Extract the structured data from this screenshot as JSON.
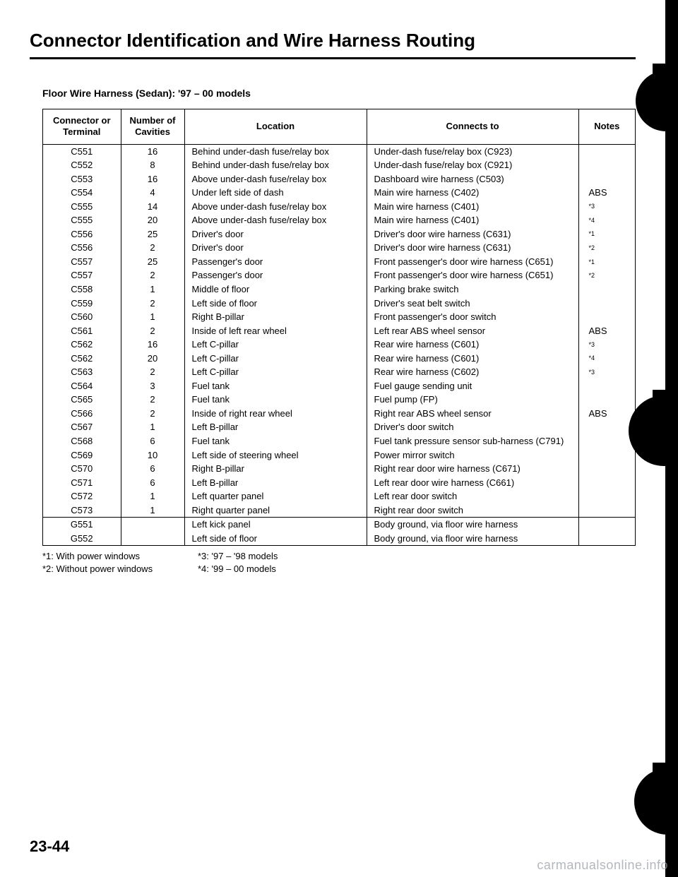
{
  "title": "Connector Identification and Wire Harness Routing",
  "subtitle": "Floor Wire Harness (Sedan): '97 – 00 models",
  "headers": {
    "connector": "Connector or\nTerminal",
    "cavities": "Number of\nCavities",
    "location": "Location",
    "connects": "Connects to",
    "notes": "Notes"
  },
  "rows": [
    {
      "c": "C551",
      "n": "16",
      "loc": "Behind under-dash fuse/relay box",
      "to": "Under-dash fuse/relay box (C923)",
      "note": ""
    },
    {
      "c": "C552",
      "n": "8",
      "loc": "Behind under-dash fuse/relay box",
      "to": "Under-dash fuse/relay box (C921)",
      "note": ""
    },
    {
      "c": "C553",
      "n": "16",
      "loc": "Above under-dash fuse/relay box",
      "to": "Dashboard wire harness (C503)",
      "note": ""
    },
    {
      "c": "C554",
      "n": "4",
      "loc": "Under left side of dash",
      "to": "Main wire harness (C402)",
      "note": "ABS"
    },
    {
      "c": "C555",
      "n": "14",
      "loc": "Above under-dash fuse/relay box",
      "to": "Main wire harness (C401)",
      "note": "*3",
      "sup": true
    },
    {
      "c": "C555",
      "n": "20",
      "loc": "Above under-dash fuse/relay box",
      "to": "Main wire harness (C401)",
      "note": "*4",
      "sup": true
    },
    {
      "c": "C556",
      "n": "25",
      "loc": "Driver's door",
      "to": "Driver's door wire harness (C631)",
      "note": "*1",
      "sup": true
    },
    {
      "c": "C556",
      "n": "2",
      "loc": "Driver's door",
      "to": "Driver's door wire harness (C631)",
      "note": "*2",
      "sup": true
    },
    {
      "c": "C557",
      "n": "25",
      "loc": "Passenger's door",
      "to": "Front passenger's door wire harness (C651)",
      "note": "*1",
      "sup": true
    },
    {
      "c": "C557",
      "n": "2",
      "loc": "Passenger's door",
      "to": "Front passenger's door wire harness (C651)",
      "note": "*2",
      "sup": true
    },
    {
      "c": "C558",
      "n": "1",
      "loc": "Middle of floor",
      "to": "Parking brake switch",
      "note": ""
    },
    {
      "c": "C559",
      "n": "2",
      "loc": "Left side of floor",
      "to": "Driver's seat belt switch",
      "note": ""
    },
    {
      "c": "C560",
      "n": "1",
      "loc": "Right B-pillar",
      "to": "Front passenger's door switch",
      "note": ""
    },
    {
      "c": "C561",
      "n": "2",
      "loc": "Inside of left rear wheel",
      "to": "Left rear ABS wheel sensor",
      "note": "ABS"
    },
    {
      "c": "C562",
      "n": "16",
      "loc": "Left C-pillar",
      "to": "Rear wire harness (C601)",
      "note": "*3",
      "sup": true
    },
    {
      "c": "C562",
      "n": "20",
      "loc": "Left C-pillar",
      "to": "Rear wire harness (C601)",
      "note": "*4",
      "sup": true
    },
    {
      "c": "C563",
      "n": "2",
      "loc": "Left C-pillar",
      "to": "Rear wire harness (C602)",
      "note": "*3",
      "sup": true
    },
    {
      "c": "C564",
      "n": "3",
      "loc": "Fuel tank",
      "to": "Fuel gauge sending unit",
      "note": ""
    },
    {
      "c": "C565",
      "n": "2",
      "loc": "Fuel tank",
      "to": "Fuel pump (FP)",
      "note": ""
    },
    {
      "c": "C566",
      "n": "2",
      "loc": "Inside of right rear wheel",
      "to": "Right rear ABS wheel sensor",
      "note": "ABS"
    },
    {
      "c": "C567",
      "n": "1",
      "loc": "Left B-pillar",
      "to": "Driver's door switch",
      "note": ""
    },
    {
      "c": "C568",
      "n": "6",
      "loc": "Fuel tank",
      "to": "Fuel tank pressure sensor sub-harness (C791)",
      "note": ""
    },
    {
      "c": "C569",
      "n": "10",
      "loc": "Left side of steering wheel",
      "to": "Power mirror switch",
      "note": ""
    },
    {
      "c": "C570",
      "n": "6",
      "loc": "Right B-pillar",
      "to": "Right rear door wire harness (C671)",
      "note": ""
    },
    {
      "c": "C571",
      "n": "6",
      "loc": "Left B-pillar",
      "to": "Left rear door wire harness (C661)",
      "note": ""
    },
    {
      "c": "C572",
      "n": "1",
      "loc": "Left quarter panel",
      "to": "Left rear door switch",
      "note": ""
    },
    {
      "c": "C573",
      "n": "1",
      "loc": "Right quarter panel",
      "to": "Right rear door switch",
      "note": ""
    }
  ],
  "rows2": [
    {
      "c": "G551",
      "n": "",
      "loc": "Left kick panel",
      "to": "Body ground, via floor wire harness",
      "note": ""
    },
    {
      "c": "G552",
      "n": "",
      "loc": "Left side of floor",
      "to": "Body ground, via floor wire harness",
      "note": ""
    }
  ],
  "footnotes": {
    "f1": "*1: With power windows",
    "f2": "*2: Without power windows",
    "f3": "*3: '97 – '98 models",
    "f4": "*4: '99 – 00 models"
  },
  "page_number": "23-44",
  "watermark": "carmanualsonline.info"
}
